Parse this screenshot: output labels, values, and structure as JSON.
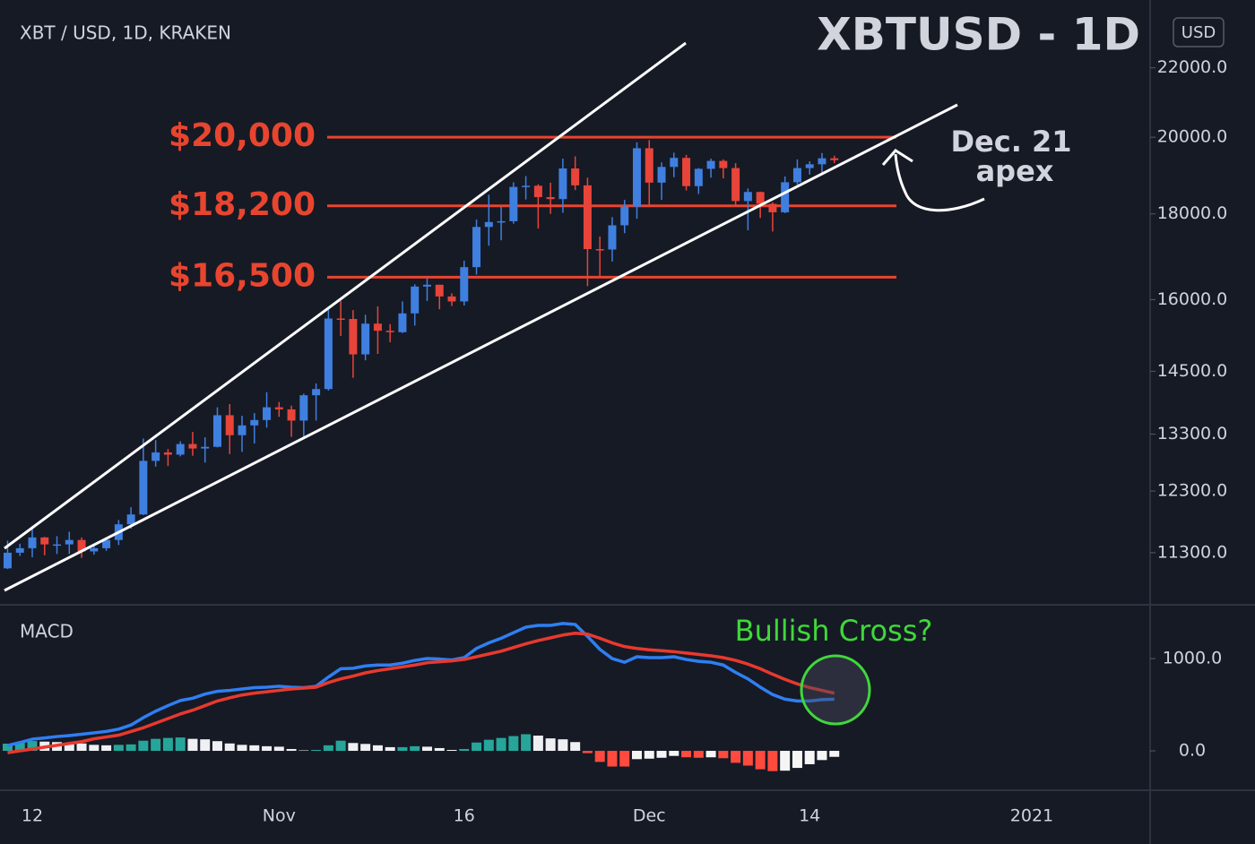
{
  "chart_data": [
    {
      "type": "candlestick",
      "title": "XBTUSD - 1D",
      "subtitle": "XBT / USD, 1D, KRAKEN",
      "currency": "USD",
      "categories": [
        null,
        null,
        "12",
        null,
        null,
        null,
        null,
        null,
        null,
        null,
        null,
        null,
        null,
        null,
        null,
        null,
        null,
        null,
        null,
        null,
        null,
        null,
        "Nov",
        null,
        null,
        null,
        null,
        null,
        null,
        null,
        null,
        null,
        null,
        null,
        null,
        null,
        null,
        "16",
        null,
        null,
        null,
        null,
        null,
        null,
        null,
        null,
        null,
        null,
        null,
        null,
        null,
        null,
        "Dec",
        null,
        null,
        null,
        null,
        null,
        null,
        null,
        null,
        null,
        null,
        null,
        null,
        "14",
        null,
        null,
        null,
        null,
        null,
        null,
        null,
        null,
        null,
        null,
        null,
        null,
        null,
        null,
        null,
        null,
        null,
        "2021",
        null,
        null,
        null,
        null,
        null,
        null,
        null,
        null,
        null
      ],
      "open": [
        11060,
        11300,
        11370,
        11540,
        11430,
        11430,
        11500,
        11320,
        11370,
        11500,
        11750,
        11910,
        12820,
        12970,
        12930,
        13120,
        13040,
        13070,
        13650,
        13280,
        13460,
        13560,
        13800,
        13760,
        13550,
        14030,
        14150,
        15590,
        15580,
        14840,
        15480,
        15330,
        15300,
        15700,
        16290,
        16330,
        16070,
        15960,
        16730,
        17680,
        17800,
        17820,
        18680,
        18710,
        18420,
        18370,
        19160,
        18720,
        17150,
        17140,
        17720,
        18180,
        19700,
        18790,
        19200,
        19440,
        18700,
        19150,
        19360,
        19170,
        18320,
        18550,
        18250,
        18040,
        18800,
        19170,
        19270,
        19430,
        null,
        null,
        null,
        null,
        null,
        null,
        null,
        null,
        null,
        null,
        null,
        null,
        null,
        null,
        null,
        null,
        null,
        null,
        null,
        null,
        null,
        null,
        null,
        null,
        null
      ],
      "high": [
        11490,
        11440,
        11720,
        11550,
        11560,
        11630,
        11540,
        11420,
        11520,
        11820,
        12030,
        13220,
        13190,
        13030,
        13170,
        13340,
        13240,
        13800,
        13860,
        13640,
        13690,
        14090,
        13900,
        13830,
        14060,
        14260,
        15780,
        15970,
        15770,
        15670,
        15850,
        15470,
        15960,
        16340,
        16480,
        16330,
        16140,
        16880,
        17860,
        18480,
        18180,
        18800,
        18960,
        18750,
        18790,
        19420,
        19480,
        18920,
        17450,
        17920,
        18350,
        19860,
        19920,
        19320,
        19580,
        19520,
        19170,
        19420,
        19400,
        19300,
        18640,
        18560,
        18290,
        18950,
        19400,
        19350,
        19570,
        19500,
        null,
        null,
        null,
        null,
        null,
        null,
        null,
        null,
        null,
        null,
        null,
        null,
        null,
        null,
        null,
        null,
        null,
        null,
        null,
        null,
        null,
        null,
        null,
        null,
        null
      ],
      "low": [
        11050,
        11250,
        11230,
        11260,
        11280,
        11280,
        11220,
        11270,
        11330,
        11420,
        11680,
        11900,
        12720,
        12730,
        12900,
        12910,
        12790,
        13060,
        12940,
        12980,
        13130,
        13420,
        13620,
        13250,
        13230,
        13550,
        14120,
        15220,
        14370,
        14720,
        14850,
        15090,
        15280,
        15440,
        15970,
        15790,
        15860,
        15870,
        16560,
        17230,
        17360,
        17760,
        18360,
        17640,
        18000,
        18030,
        18600,
        16300,
        16500,
        16860,
        17530,
        17880,
        18170,
        18350,
        18930,
        18590,
        18500,
        18920,
        18900,
        18200,
        17600,
        17900,
        17570,
        18020,
        18740,
        19000,
        19050,
        19300,
        null,
        null,
        null,
        null,
        null,
        null,
        null,
        null,
        null,
        null,
        null,
        null,
        null,
        null,
        null,
        null,
        null,
        null,
        null,
        null,
        null,
        null,
        null,
        null,
        null
      ],
      "close": [
        11300,
        11370,
        11540,
        11430,
        11430,
        11500,
        11320,
        11370,
        11500,
        11750,
        11910,
        12820,
        12970,
        12930,
        13120,
        13040,
        13070,
        13650,
        13280,
        13460,
        13560,
        13800,
        13760,
        13550,
        14030,
        14150,
        15590,
        15580,
        14840,
        15480,
        15330,
        15300,
        15700,
        16290,
        16330,
        16070,
        15960,
        16730,
        17680,
        17800,
        17820,
        18680,
        18710,
        18420,
        18370,
        19160,
        18720,
        17150,
        17140,
        17720,
        18180,
        19700,
        18790,
        19200,
        19440,
        18700,
        19150,
        19360,
        19170,
        18320,
        18550,
        18250,
        18040,
        18800,
        19170,
        19270,
        19430,
        19380,
        null,
        null,
        null,
        null,
        null,
        null,
        null,
        null,
        null,
        null,
        null,
        null,
        null,
        null,
        null,
        null,
        null,
        null,
        null,
        null,
        null,
        null,
        null,
        null,
        null
      ],
      "up_color": "#3f7fe0",
      "down_color": "#e8443a",
      "log_scale": true,
      "ylim": [
        10520,
        24150
      ],
      "yticks": [
        {
          "value": 22000,
          "label": "22000.0"
        },
        {
          "value": 20000,
          "label": "20000.0"
        },
        {
          "value": 18000,
          "label": "18000.0"
        },
        {
          "value": 16000,
          "label": "16000.0"
        },
        {
          "value": 14500,
          "label": "14500.0"
        },
        {
          "value": 13300,
          "label": "13300.0"
        },
        {
          "value": 12300,
          "label": "12300.0"
        },
        {
          "value": 11300,
          "label": "11300.0"
        }
      ],
      "levels": [
        {
          "label": "$20,000",
          "value": 20000
        },
        {
          "label": "$18,200",
          "value": 18200
        },
        {
          "label": "$16,500",
          "value": 16500
        }
      ],
      "level_color": "#e8452f",
      "annotation": [
        "Dec. 21",
        "apex"
      ]
    },
    {
      "type": "macd",
      "title": "MACD",
      "annotation": "Bullish Cross?",
      "ylim": [
        -427,
        1583
      ],
      "yticks": [
        {
          "value": 1000,
          "label": "1000.0"
        },
        {
          "value": 0,
          "label": "0.0"
        }
      ],
      "series": [
        {
          "color": "#2f7ff2",
          "values": [
            58,
            90,
            126,
            140,
            155,
            165,
            180,
            195,
            210,
            235,
            280,
            360,
            430,
            490,
            545,
            570,
            615,
            645,
            655,
            670,
            685,
            690,
            700,
            690,
            685,
            700,
            800,
            890,
            895,
            920,
            930,
            930,
            950,
            980,
            1000,
            995,
            985,
            1010,
            1110,
            1170,
            1220,
            1280,
            1340,
            1360,
            1360,
            1380,
            1370,
            1240,
            1100,
            1000,
            960,
            1020,
            1010,
            1010,
            1020,
            990,
            970,
            960,
            930,
            850,
            780,
            690,
            610,
            560,
            540,
            540,
            555,
            560,
            null,
            null,
            null,
            null,
            null,
            null,
            null,
            null,
            null,
            null,
            null,
            null,
            null,
            null,
            null,
            null,
            null,
            null,
            null,
            null,
            null,
            null,
            null,
            null,
            null
          ]
        },
        {
          "color": "#e8392e",
          "values": [
            -20,
            0,
            20,
            40,
            60,
            80,
            100,
            130,
            150,
            170,
            210,
            250,
            300,
            350,
            400,
            440,
            490,
            540,
            575,
            605,
            625,
            640,
            655,
            670,
            680,
            690,
            740,
            780,
            810,
            845,
            870,
            890,
            910,
            930,
            955,
            965,
            975,
            990,
            1020,
            1050,
            1080,
            1120,
            1160,
            1195,
            1225,
            1255,
            1275,
            1265,
            1220,
            1170,
            1130,
            1110,
            1095,
            1085,
            1075,
            1060,
            1045,
            1030,
            1010,
            980,
            940,
            890,
            830,
            775,
            725,
            685,
            655,
            625,
            null,
            null,
            null,
            null,
            null,
            null,
            null,
            null,
            null,
            null,
            null,
            null,
            null,
            null,
            null,
            null,
            null,
            null,
            null,
            null,
            null,
            null,
            null,
            null,
            null
          ]
        }
      ],
      "histogram": [
        78,
        90,
        106,
        100,
        95,
        85,
        80,
        65,
        60,
        65,
        70,
        110,
        130,
        140,
        145,
        130,
        125,
        105,
        80,
        65,
        60,
        50,
        45,
        20,
        5,
        10,
        60,
        110,
        85,
        75,
        60,
        40,
        40,
        50,
        45,
        30,
        10,
        20,
        90,
        120,
        140,
        160,
        180,
        165,
        135,
        125,
        95,
        -25,
        -120,
        -170,
        -170,
        -90,
        -85,
        -75,
        -55,
        -70,
        -75,
        -70,
        -80,
        -130,
        -160,
        -200,
        -220,
        -215,
        -185,
        -145,
        -100,
        -65,
        null,
        null,
        null,
        null,
        null,
        null,
        null,
        null,
        null,
        null,
        null,
        null,
        null,
        null,
        null,
        null,
        null,
        null,
        null,
        null,
        null,
        null,
        null,
        null,
        null
      ],
      "histogram_colors": {
        "rising_positive": "#26a69a",
        "falling_positive": "#eef0f4",
        "falling_negative": "#ff4a3d",
        "rising_negative": "#f5f5f5"
      },
      "annotation_color": "#3fd83a"
    }
  ]
}
